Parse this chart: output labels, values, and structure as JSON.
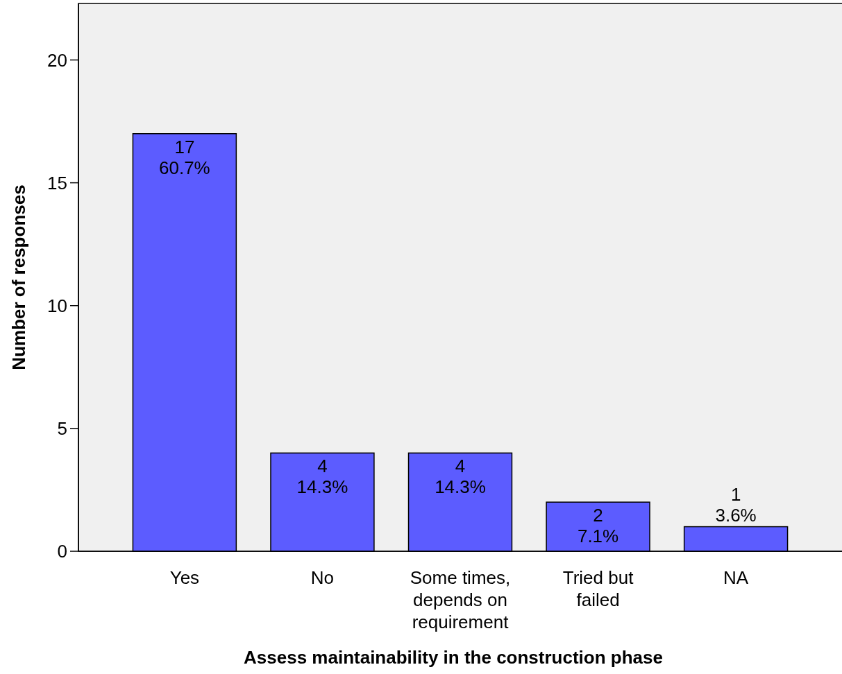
{
  "chart_data": {
    "type": "bar",
    "xlabel": "Assess maintainability in the construction phase",
    "ylabel": "Number of responses",
    "categories": [
      "Yes",
      "No",
      "Some times,\ndepends on\nrequirement",
      "Tried but\nfailed",
      "NA"
    ],
    "values": [
      17,
      4,
      4,
      2,
      1
    ],
    "color": "#5c5cff",
    "value_labels": [
      "17\n60.7%",
      "4\n14.3%",
      "4\n14.3%",
      "2\n7.1%",
      "1\n3.6%"
    ],
    "ylim": [
      0,
      22.3
    ],
    "yticks": [
      0,
      5,
      10,
      15,
      20
    ],
    "grid": false
  }
}
